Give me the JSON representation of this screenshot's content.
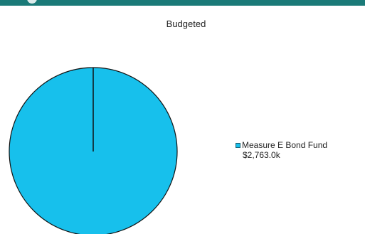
{
  "colors": {
    "banner": "#1a7a78",
    "slice": "#17c0ec",
    "outline": "#111111"
  },
  "chart_data": {
    "type": "pie",
    "title": "Budgeted",
    "legend_position": "right",
    "slices": [
      {
        "label": "Measure E Bond Fund",
        "value_text": "$2,763.0k",
        "value": 2763.0,
        "share": 1.0,
        "color": "#17c0ec"
      }
    ]
  }
}
